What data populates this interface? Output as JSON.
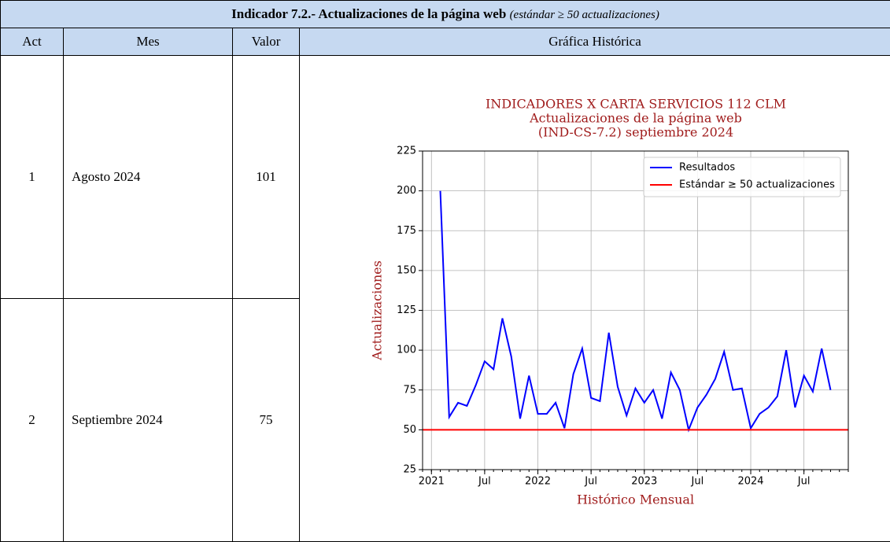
{
  "table": {
    "title": "Indicador 7.2.- Actualizaciones de la página web",
    "title_note": "(estándar ≥ 50 actualizaciones)",
    "headers": [
      "Act",
      "Mes",
      "Valor",
      "Gráfica Histórica"
    ],
    "rows": [
      [
        1,
        "Agosto 2024",
        101
      ],
      [
        2,
        "Septiembre 2024",
        75
      ]
    ]
  },
  "chart_data": {
    "type": "line",
    "title": [
      "INDICADORES X CARTA SERVICIOS 112 CLM",
      "Actualizaciones de la página web",
      "(IND-CS-7.2) septiembre 2024"
    ],
    "xlabel": "Histórico Mensual",
    "ylabel": "Actualizaciones",
    "x": [
      "2021-01",
      "2021-02",
      "2021-03",
      "2021-04",
      "2021-05",
      "2021-06",
      "2021-07",
      "2021-08",
      "2021-09",
      "2021-10",
      "2021-11",
      "2021-12",
      "2022-01",
      "2022-02",
      "2022-03",
      "2022-04",
      "2022-05",
      "2022-06",
      "2022-07",
      "2022-08",
      "2022-09",
      "2022-10",
      "2022-11",
      "2022-12",
      "2023-01",
      "2023-02",
      "2023-03",
      "2023-04",
      "2023-05",
      "2023-06",
      "2023-07",
      "2023-08",
      "2023-09",
      "2023-10",
      "2023-11",
      "2023-12",
      "2024-01",
      "2024-02",
      "2024-03",
      "2024-04",
      "2024-05",
      "2024-06",
      "2024-07",
      "2024-08",
      "2024-09"
    ],
    "series": [
      {
        "name": "Resultados",
        "color": "#0000ff",
        "values": [
          200,
          58,
          67,
          65,
          78,
          93,
          88,
          120,
          96,
          57,
          84,
          60,
          60,
          67,
          51,
          85,
          101,
          70,
          68,
          111,
          77,
          59,
          76,
          67,
          75,
          57,
          86,
          75,
          50,
          64,
          72,
          82,
          99,
          75,
          76,
          51,
          60,
          64,
          71,
          100,
          64,
          84,
          74,
          101,
          75
        ]
      }
    ],
    "standard": {
      "name": "Estándar ≥ 50 actualizaciones",
      "value": 50,
      "color": "#ff0000"
    },
    "xlim": [
      "2020-12",
      "2024-12"
    ],
    "xticks": [
      {
        "value": "2021-01",
        "label": "2021"
      },
      {
        "value": "2021-07",
        "label": "Jul"
      },
      {
        "value": "2022-01",
        "label": "2022"
      },
      {
        "value": "2022-07",
        "label": "Jul"
      },
      {
        "value": "2023-01",
        "label": "2023"
      },
      {
        "value": "2023-07",
        "label": "Jul"
      },
      {
        "value": "2024-01",
        "label": "2024"
      },
      {
        "value": "2024-07",
        "label": "Jul"
      }
    ],
    "ylim": [
      25,
      225
    ],
    "yticks": [
      25,
      50,
      75,
      100,
      125,
      150,
      175,
      200,
      225
    ],
    "grid": true,
    "legend": "upper right"
  }
}
